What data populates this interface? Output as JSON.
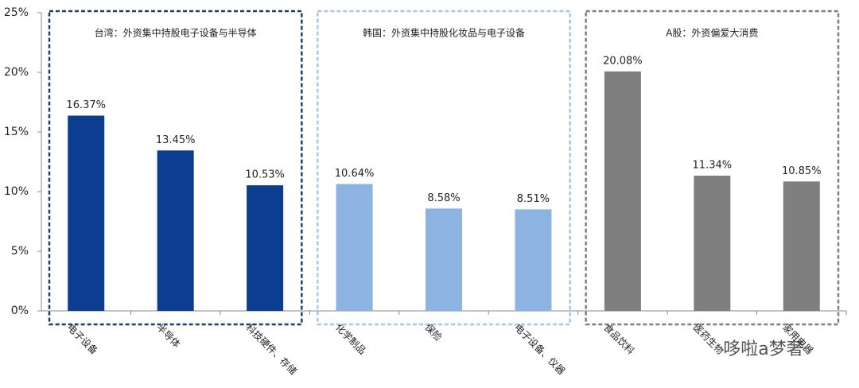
{
  "chart_data": {
    "type": "bar",
    "categories": [
      "电子设备",
      "半导体",
      "科技硬件、存储",
      "化学制品",
      "保险",
      "电子设备、仪器",
      "食品饮料",
      "医药生物",
      "家用电器"
    ],
    "values": [
      16.37,
      13.45,
      10.53,
      10.64,
      8.58,
      8.51,
      20.08,
      11.34,
      10.85
    ],
    "value_labels": [
      "16.37%",
      "13.45%",
      "10.53%",
      "10.64%",
      "8.58%",
      "8.51%",
      "20.08%",
      "11.34%",
      "10.85%"
    ],
    "colors": [
      "#0b3e91",
      "#0b3e91",
      "#0b3e91",
      "#8db3e2",
      "#8db3e2",
      "#8db3e2",
      "#7f7f7f",
      "#7f7f7f",
      "#7f7f7f"
    ],
    "group_titles": [
      "台湾：外资集中持股电子设备与半导体",
      "韩国：外资集中持股化妆品与电子设备",
      "A股：外资偏爱大消费"
    ],
    "group_colors": [
      "#1f3f6b",
      "#a9c6ea",
      "#7f7f7f"
    ],
    "ylim": [
      0,
      25
    ],
    "yticks": [
      {
        "value": 0,
        "label": "0%"
      },
      {
        "value": 5,
        "label": "5%"
      },
      {
        "value": 10,
        "label": "10%"
      },
      {
        "value": 15,
        "label": "15%"
      },
      {
        "value": 20,
        "label": "20%"
      },
      {
        "value": 25,
        "label": "25%"
      }
    ],
    "watermark": "哆啦a梦奢"
  }
}
